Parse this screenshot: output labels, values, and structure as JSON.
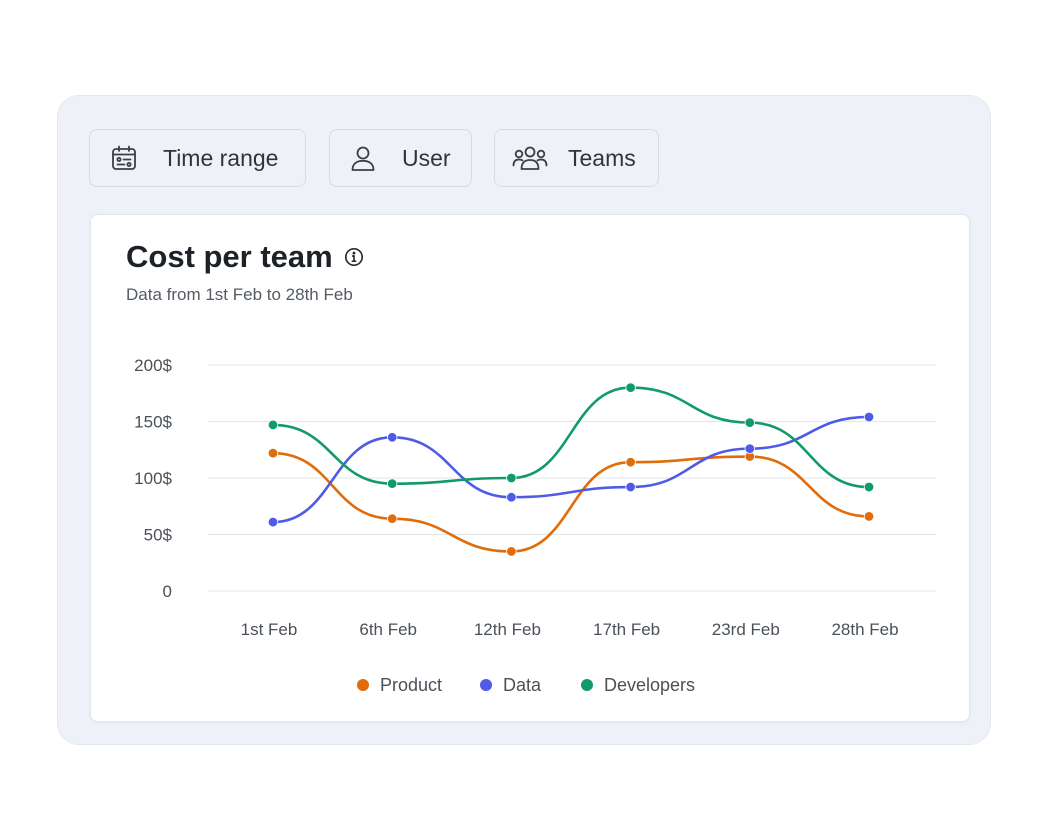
{
  "filters": [
    {
      "label": "Time range",
      "icon": "calendar-icon"
    },
    {
      "label": "User",
      "icon": "user-icon"
    },
    {
      "label": "Teams",
      "icon": "team-icon"
    }
  ],
  "card": {
    "title": "Cost per team",
    "subtitle": "Data from 1st Feb to 28th Feb",
    "info_icon": "info-icon"
  },
  "colors": {
    "product": "#e06c0b",
    "data": "#4f5be8",
    "developers": "#129b6a",
    "grid": "#e3e6ea",
    "axis_text": "#4b5159"
  },
  "chart_data": {
    "type": "line",
    "title": "Cost per team",
    "subtitle": "Data from 1st Feb to 28th Feb",
    "categories": [
      "1st Feb",
      "6th Feb",
      "12th Feb",
      "17th Feb",
      "23rd Feb",
      "28th Feb"
    ],
    "yticks": [
      "200$",
      "150$",
      "100$",
      "50$",
      "0"
    ],
    "ylim": [
      0,
      200
    ],
    "grid": true,
    "smooth": true,
    "legend_position": "bottom",
    "series": [
      {
        "name": "Product",
        "color": "#e06c0b",
        "values": [
          122,
          64,
          35,
          114,
          119,
          66
        ]
      },
      {
        "name": "Data",
        "color": "#4f5be8",
        "values": [
          61,
          136,
          83,
          92,
          126,
          154
        ]
      },
      {
        "name": "Developers",
        "color": "#129b6a",
        "values": [
          147,
          95,
          100,
          180,
          149,
          92
        ]
      }
    ]
  }
}
